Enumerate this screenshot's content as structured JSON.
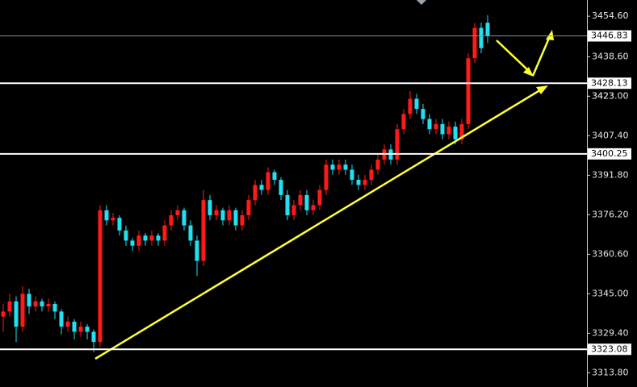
{
  "chart_data": {
    "type": "candlestick",
    "up_color": "#ff1a1a",
    "down_color": "#22e0f0",
    "level_color": "#ffffff",
    "current_color": "#8a8f99",
    "ylim": [
      3308.2,
      3461.0
    ],
    "yticks": [
      {
        "value": 3454.6,
        "label": "3454.60"
      },
      {
        "value": 3438.6,
        "label": "3438.60"
      },
      3423,
      {
        "value": 3423.0,
        "label": "3423.00"
      },
      {
        "value": 3407.4,
        "label": "3407.40"
      },
      {
        "value": 3391.8,
        "label": "3391.80"
      },
      {
        "value": 3376.2,
        "label": "3376.20"
      },
      {
        "value": 3360.6,
        "label": "3360.60"
      },
      {
        "value": 3345.0,
        "label": "3345.00"
      },
      {
        "value": 3329.4,
        "label": "3329.40"
      },
      {
        "value": 3313.8,
        "label": "3313.80"
      }
    ],
    "levels": [
      3428.13,
      3400.25,
      3323.08
    ],
    "current_price": 3446.83,
    "ohlc": [
      [
        3336,
        3341,
        3330,
        3338
      ],
      [
        3338,
        3345,
        3336,
        3342
      ],
      [
        3342,
        3344,
        3326,
        3332
      ],
      [
        3332,
        3348,
        3330,
        3345
      ],
      [
        3345,
        3347,
        3337,
        3340
      ],
      [
        3340,
        3344,
        3338,
        3342
      ],
      [
        3342,
        3343,
        3338,
        3340
      ],
      [
        3340,
        3343,
        3338,
        3341
      ],
      [
        3341,
        3342,
        3335,
        3338
      ],
      [
        3338,
        3339,
        3329,
        3332
      ],
      [
        3332,
        3336,
        3330,
        3334
      ],
      [
        3334,
        3335,
        3327,
        3330
      ],
      [
        3330,
        3334,
        3328,
        3332
      ],
      [
        3332,
        3333,
        3327,
        3330
      ],
      [
        3330,
        3331,
        3322,
        3326
      ],
      [
        3326,
        3380,
        3324,
        3378
      ],
      [
        3378,
        3380,
        3372,
        3374
      ],
      [
        3374,
        3377,
        3372,
        3375
      ],
      [
        3375,
        3376,
        3368,
        3370
      ],
      [
        3370,
        3372,
        3364,
        3366
      ],
      [
        3366,
        3367,
        3362,
        3364
      ],
      [
        3364,
        3370,
        3362,
        3368
      ],
      [
        3368,
        3369,
        3364,
        3366
      ],
      [
        3366,
        3370,
        3364,
        3368
      ],
      [
        3368,
        3369,
        3364,
        3366
      ],
      [
        3366,
        3374,
        3364,
        3372
      ],
      [
        3372,
        3378,
        3370,
        3376
      ],
      [
        3376,
        3380,
        3374,
        3378
      ],
      [
        3378,
        3379,
        3370,
        3372
      ],
      [
        3372,
        3374,
        3364,
        3366
      ],
      [
        3366,
        3368,
        3352,
        3358
      ],
      [
        3358,
        3386,
        3356,
        3382
      ],
      [
        3382,
        3384,
        3374,
        3376
      ],
      [
        3376,
        3380,
        3374,
        3378
      ],
      [
        3378,
        3379,
        3372,
        3374
      ],
      [
        3374,
        3380,
        3372,
        3378
      ],
      [
        3378,
        3379,
        3370,
        3372
      ],
      [
        3372,
        3378,
        3370,
        3376
      ],
      [
        3376,
        3384,
        3374,
        3382
      ],
      [
        3382,
        3390,
        3380,
        3388
      ],
      [
        3388,
        3390,
        3384,
        3386
      ],
      [
        3386,
        3395,
        3384,
        3393
      ],
      [
        3393,
        3394,
        3388,
        3390
      ],
      [
        3390,
        3391,
        3382,
        3384
      ],
      [
        3384,
        3386,
        3374,
        3376
      ],
      [
        3376,
        3382,
        3374,
        3380
      ],
      [
        3380,
        3386,
        3378,
        3384
      ],
      [
        3384,
        3386,
        3376,
        3378
      ],
      [
        3378,
        3382,
        3376,
        3380
      ],
      [
        3380,
        3388,
        3378,
        3386
      ],
      [
        3386,
        3398,
        3384,
        3396
      ],
      [
        3396,
        3398,
        3392,
        3394
      ],
      [
        3394,
        3398,
        3392,
        3396
      ],
      [
        3396,
        3398,
        3392,
        3394
      ],
      [
        3394,
        3396,
        3388,
        3390
      ],
      [
        3390,
        3392,
        3386,
        3388
      ],
      [
        3388,
        3392,
        3386,
        3390
      ],
      [
        3390,
        3396,
        3388,
        3394
      ],
      [
        3394,
        3400,
        3392,
        3398
      ],
      [
        3398,
        3404,
        3396,
        3402
      ],
      [
        3402,
        3404,
        3396,
        3398
      ],
      [
        3398,
        3412,
        3396,
        3410
      ],
      [
        3410,
        3418,
        3408,
        3416
      ],
      [
        3416,
        3425,
        3414,
        3422
      ],
      [
        3422,
        3424,
        3416,
        3418
      ],
      [
        3418,
        3420,
        3412,
        3414
      ],
      [
        3414,
        3416,
        3408,
        3410
      ],
      [
        3410,
        3414,
        3408,
        3412
      ],
      [
        3412,
        3414,
        3406,
        3408
      ],
      [
        3408,
        3413,
        3406,
        3411
      ],
      [
        3411,
        3413,
        3404,
        3406
      ],
      [
        3406,
        3414,
        3404,
        3412
      ],
      [
        3412,
        3440,
        3410,
        3438
      ],
      [
        3438,
        3452,
        3436,
        3450
      ],
      [
        3450,
        3452,
        3440,
        3442
      ],
      [
        3452,
        3455,
        3444,
        3446.83
      ]
    ]
  }
}
